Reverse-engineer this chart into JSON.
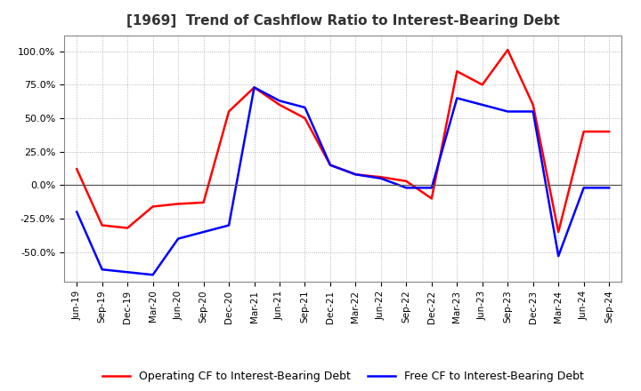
{
  "title": "[1969]  Trend of Cashflow Ratio to Interest-Bearing Debt",
  "x_labels": [
    "Jun-19",
    "Sep-19",
    "Dec-19",
    "Mar-20",
    "Jun-20",
    "Sep-20",
    "Dec-20",
    "Mar-21",
    "Jun-21",
    "Sep-21",
    "Dec-21",
    "Mar-22",
    "Jun-22",
    "Sep-22",
    "Dec-22",
    "Mar-23",
    "Jun-23",
    "Sep-23",
    "Dec-23",
    "Mar-24",
    "Jun-24",
    "Sep-24"
  ],
  "operating_cf": [
    12,
    -30,
    -32,
    -16,
    -14,
    -13,
    55,
    73,
    60,
    50,
    15,
    8,
    6,
    3,
    -10,
    85,
    75,
    101,
    60,
    -35,
    40,
    40
  ],
  "free_cf": [
    -20,
    -63,
    -65,
    -67,
    -40,
    -35,
    -30,
    73,
    63,
    58,
    15,
    8,
    5,
    -2,
    -2,
    65,
    60,
    55,
    55,
    -53,
    -2,
    -2
  ],
  "operating_color": "#FF0000",
  "free_color": "#0000FF",
  "ylim": [
    -72,
    112
  ],
  "yticks": [
    -50,
    -25,
    0,
    25,
    50,
    75,
    100
  ],
  "ytick_labels": [
    "-50.0%",
    "-25.0%",
    "0.0%",
    "25.0%",
    "50.0%",
    "75.0%",
    "100.0%"
  ],
  "background_color": "#FFFFFF",
  "plot_bg_color": "#FFFFFF",
  "grid_color": "#999999",
  "legend_operating": "Operating CF to Interest-Bearing Debt",
  "legend_free": "Free CF to Interest-Bearing Debt",
  "title_fontsize": 11,
  "tick_fontsize": 8,
  "legend_fontsize": 9
}
